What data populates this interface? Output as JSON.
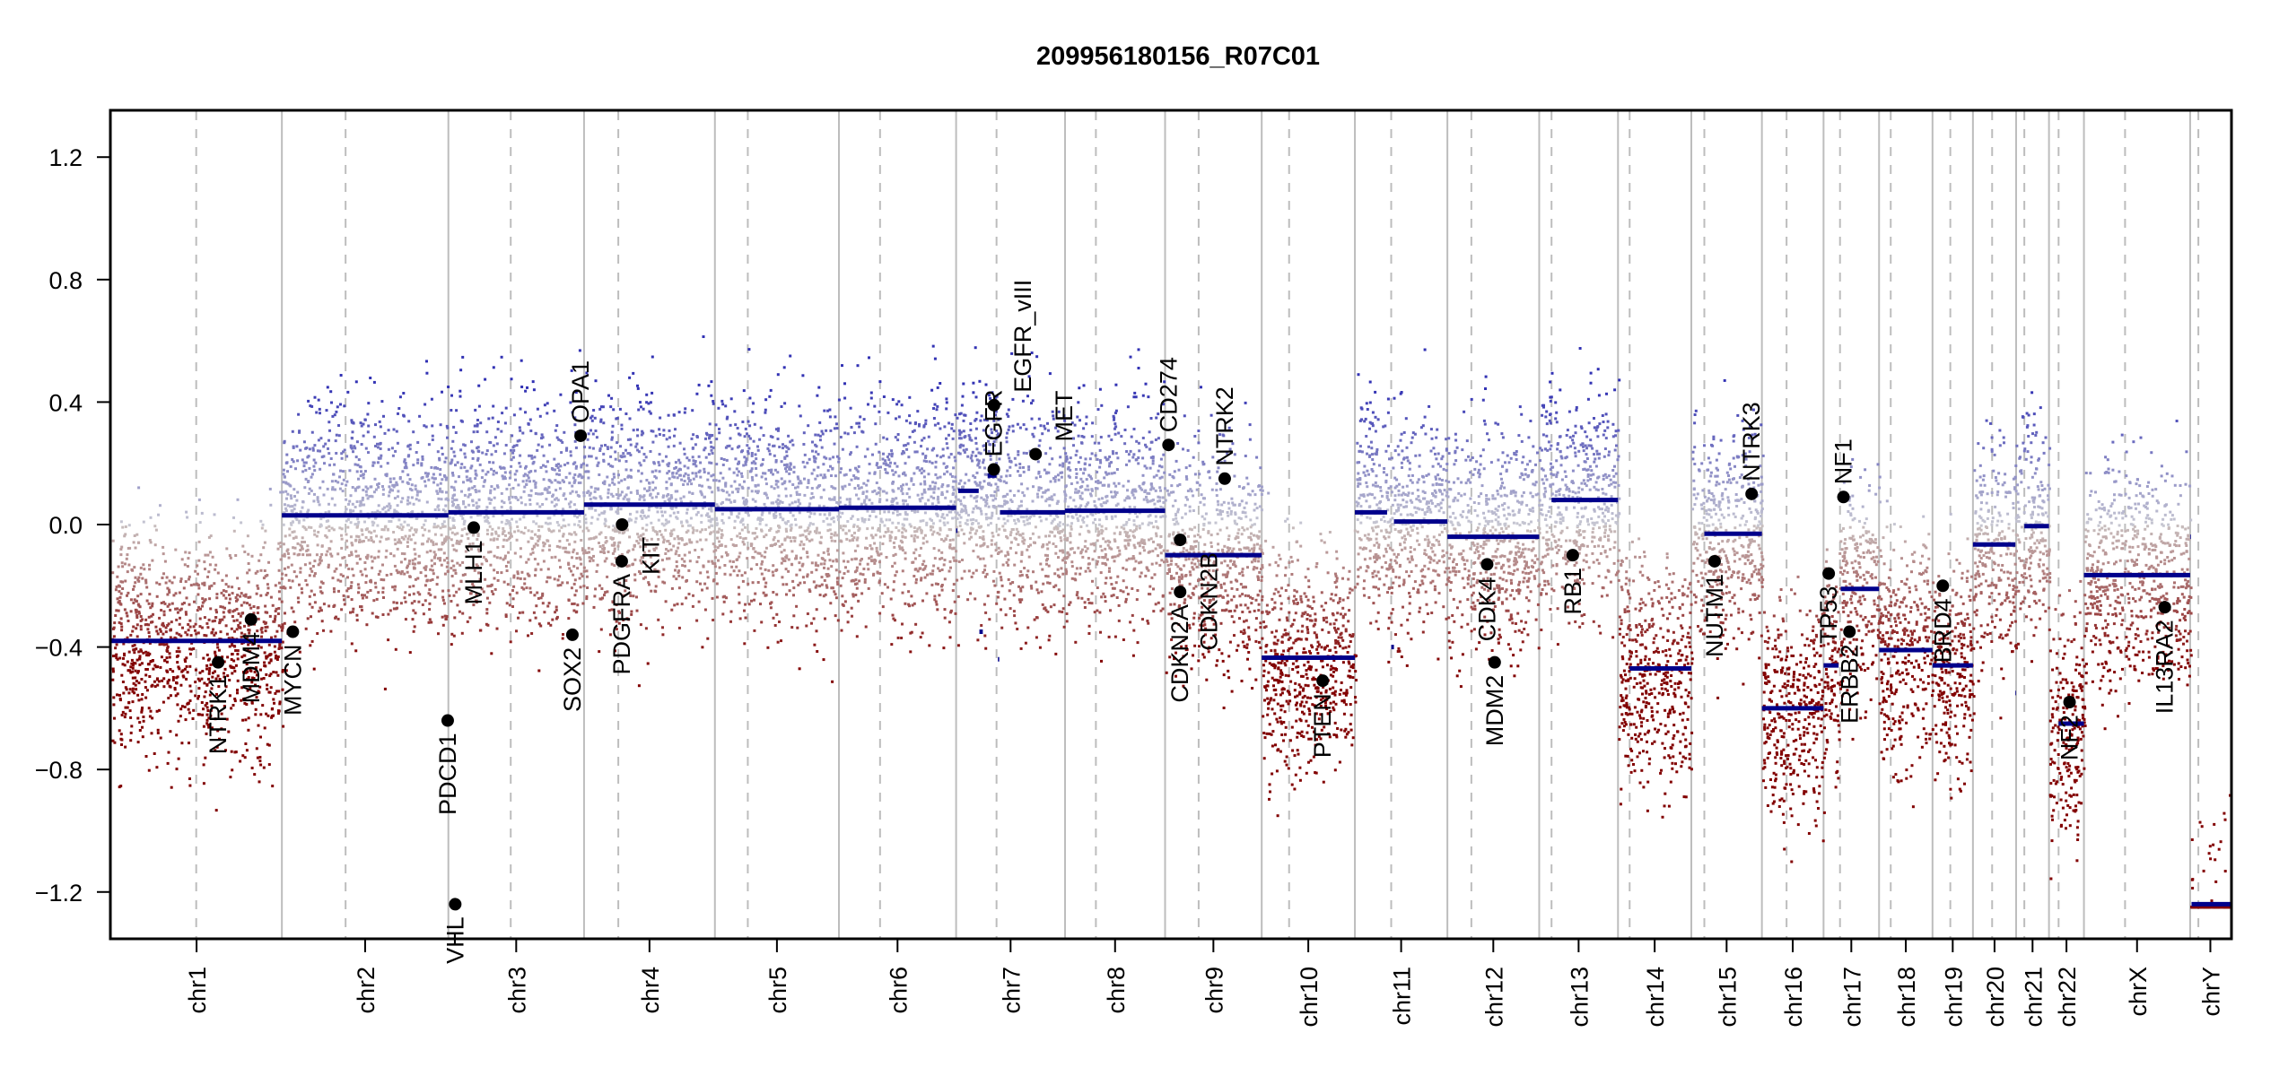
{
  "chart_data": {
    "type": "scatter",
    "title": "209956180156_R07C01",
    "xlabel": "",
    "ylabel": "",
    "ylim": [
      -1.35,
      1.35
    ],
    "yticks": [
      -1.2,
      -0.8,
      -0.4,
      0.0,
      0.4,
      0.8,
      1.2
    ],
    "ytick_labels": [
      "−1.2",
      "−0.8",
      "−0.4",
      "0.0",
      "0.4",
      "0.8",
      "1.2"
    ],
    "grid": false,
    "legend": "none",
    "colors": {
      "gain": "#2b2f9e",
      "loss": "#8b0000",
      "neutral": "#c8c8c8",
      "segment": "#00008b",
      "gene_marker": "#000000",
      "chrom_divider": "#bdbdbd",
      "centromere": "#bdbdbd"
    },
    "chromosomes": [
      {
        "name": "chr1",
        "length_mb": 249,
        "centromere_mb": 124
      },
      {
        "name": "chr2",
        "length_mb": 243,
        "centromere_mb": 93
      },
      {
        "name": "chr3",
        "length_mb": 198,
        "centromere_mb": 91
      },
      {
        "name": "chr4",
        "length_mb": 191,
        "centromere_mb": 50
      },
      {
        "name": "chr5",
        "length_mb": 181,
        "centromere_mb": 48
      },
      {
        "name": "chr6",
        "length_mb": 171,
        "centromere_mb": 60
      },
      {
        "name": "chr7",
        "length_mb": 159,
        "centromere_mb": 59
      },
      {
        "name": "chr8",
        "length_mb": 146,
        "centromere_mb": 45
      },
      {
        "name": "chr9",
        "length_mb": 141,
        "centromere_mb": 49
      },
      {
        "name": "chr10",
        "length_mb": 136,
        "centromere_mb": 40
      },
      {
        "name": "chr11",
        "length_mb": 135,
        "centromere_mb": 53
      },
      {
        "name": "chr12",
        "length_mb": 134,
        "centromere_mb": 35
      },
      {
        "name": "chr13",
        "length_mb": 115,
        "centromere_mb": 18
      },
      {
        "name": "chr14",
        "length_mb": 107,
        "centromere_mb": 17
      },
      {
        "name": "chr15",
        "length_mb": 103,
        "centromere_mb": 19
      },
      {
        "name": "chr16",
        "length_mb": 90,
        "centromere_mb": 36
      },
      {
        "name": "chr17",
        "length_mb": 81,
        "centromere_mb": 24
      },
      {
        "name": "chr18",
        "length_mb": 78,
        "centromere_mb": 17
      },
      {
        "name": "chr19",
        "length_mb": 59,
        "centromere_mb": 26
      },
      {
        "name": "chr20",
        "length_mb": 63,
        "centromere_mb": 28
      },
      {
        "name": "chr21",
        "length_mb": 48,
        "centromere_mb": 12
      },
      {
        "name": "chr22",
        "length_mb": 51,
        "centromere_mb": 14
      },
      {
        "name": "chrX",
        "length_mb": 155,
        "centromere_mb": 60
      },
      {
        "name": "chrY",
        "length_mb": 59,
        "centromere_mb": 12
      }
    ],
    "segments": [
      {
        "chrom": "chr1",
        "start_mb": 0,
        "end_mb": 249,
        "value": -0.38
      },
      {
        "chrom": "chr2",
        "start_mb": 0,
        "end_mb": 243,
        "value": 0.03
      },
      {
        "chrom": "chr3",
        "start_mb": 0,
        "end_mb": 198,
        "value": 0.04
      },
      {
        "chrom": "chr4",
        "start_mb": 0,
        "end_mb": 191,
        "value": 0.065
      },
      {
        "chrom": "chr5",
        "start_mb": 0,
        "end_mb": 181,
        "value": 0.05
      },
      {
        "chrom": "chr6",
        "start_mb": 0,
        "end_mb": 171,
        "value": 0.055
      },
      {
        "chrom": "chr7",
        "start_mb": 0,
        "end_mb": 2,
        "value": -0.02
      },
      {
        "chrom": "chr7",
        "start_mb": 3,
        "end_mb": 33,
        "value": 0.11
      },
      {
        "chrom": "chr7",
        "start_mb": 34,
        "end_mb": 39,
        "value": -0.35
      },
      {
        "chrom": "chr7",
        "start_mb": 46,
        "end_mb": 59,
        "value": 0.16
      },
      {
        "chrom": "chr7",
        "start_mb": 61,
        "end_mb": 63,
        "value": -0.44
      },
      {
        "chrom": "chr7",
        "start_mb": 64,
        "end_mb": 159,
        "value": 0.04
      },
      {
        "chrom": "chr8",
        "start_mb": 0,
        "end_mb": 146,
        "value": 0.045
      },
      {
        "chrom": "chr9",
        "start_mb": 0,
        "end_mb": 141,
        "value": -0.1
      },
      {
        "chrom": "chr10",
        "start_mb": 0,
        "end_mb": 136,
        "value": -0.435
      },
      {
        "chrom": "chr11",
        "start_mb": 0,
        "end_mb": 47,
        "value": 0.04
      },
      {
        "chrom": "chr11",
        "start_mb": 53,
        "end_mb": 57,
        "value": -0.4
      },
      {
        "chrom": "chr11",
        "start_mb": 57,
        "end_mb": 135,
        "value": 0.01
      },
      {
        "chrom": "chr12",
        "start_mb": 0,
        "end_mb": 134,
        "value": -0.04
      },
      {
        "chrom": "chr13",
        "start_mb": 18,
        "end_mb": 115,
        "value": 0.08
      },
      {
        "chrom": "chr14",
        "start_mb": 17,
        "end_mb": 107,
        "value": -0.47
      },
      {
        "chrom": "chr15",
        "start_mb": 19,
        "end_mb": 103,
        "value": -0.03
      },
      {
        "chrom": "chr16",
        "start_mb": 0,
        "end_mb": 90,
        "value": -0.6
      },
      {
        "chrom": "chr17",
        "start_mb": 0,
        "end_mb": 22,
        "value": -0.46
      },
      {
        "chrom": "chr17",
        "start_mb": 25,
        "end_mb": 81,
        "value": -0.21
      },
      {
        "chrom": "chr18",
        "start_mb": 0,
        "end_mb": 78,
        "value": -0.41
      },
      {
        "chrom": "chr19",
        "start_mb": 0,
        "end_mb": 59,
        "value": -0.46
      },
      {
        "chrom": "chr20",
        "start_mb": 0,
        "end_mb": 62,
        "value": -0.065
      },
      {
        "chrom": "chr20",
        "start_mb": 62,
        "end_mb": 63,
        "value": -0.55
      },
      {
        "chrom": "chr21",
        "start_mb": 12,
        "end_mb": 48,
        "value": -0.005
      },
      {
        "chrom": "chr22",
        "start_mb": 14,
        "end_mb": 51,
        "value": -0.65
      },
      {
        "chrom": "chrX",
        "start_mb": 0,
        "end_mb": 155,
        "value": -0.165
      },
      {
        "chrom": "chrY",
        "start_mb": 0,
        "end_mb": 1,
        "value": -0.04
      },
      {
        "chrom": "chrY",
        "start_mb": 2,
        "end_mb": 59,
        "value": -1.24
      }
    ],
    "genes": [
      {
        "name": "NTRK1",
        "chrom": "chr1",
        "pos_mb": 156,
        "value": -0.45
      },
      {
        "name": "MDM4",
        "chrom": "chr1",
        "pos_mb": 204,
        "value": -0.31
      },
      {
        "name": "MYCN",
        "chrom": "chr2",
        "pos_mb": 16,
        "value": -0.35
      },
      {
        "name": "PDCD1",
        "chrom": "chr2",
        "pos_mb": 242,
        "value": -0.64
      },
      {
        "name": "VHL",
        "chrom": "chr3",
        "pos_mb": 10,
        "value": -1.24
      },
      {
        "name": "MLH1",
        "chrom": "chr3",
        "pos_mb": 37,
        "value": -0.01
      },
      {
        "name": "SOX2",
        "chrom": "chr3",
        "pos_mb": 181,
        "value": -0.36
      },
      {
        "name": "OPA1",
        "chrom": "chr3",
        "pos_mb": 193,
        "value": 0.29
      },
      {
        "name": "PDGFRA",
        "chrom": "chr4",
        "pos_mb": 55,
        "value": -0.12
      },
      {
        "name": "KIT",
        "chrom": "chr4",
        "pos_mb": 55.5,
        "value": 0.0
      },
      {
        "name": "EGFR",
        "chrom": "chr7",
        "pos_mb": 55,
        "value": 0.18
      },
      {
        "name": "EGFR_vIII",
        "chrom": "chr7",
        "pos_mb": 55.3,
        "value": 0.39
      },
      {
        "name": "MET",
        "chrom": "chr7",
        "pos_mb": 116,
        "value": 0.23
      },
      {
        "name": "CD274",
        "chrom": "chr9",
        "pos_mb": 5,
        "value": 0.26
      },
      {
        "name": "CDKN2A",
        "chrom": "chr9",
        "pos_mb": 21.9,
        "value": -0.22
      },
      {
        "name": "CDKN2B",
        "chrom": "chr9",
        "pos_mb": 22,
        "value": -0.05
      },
      {
        "name": "NTRK2",
        "chrom": "chr9",
        "pos_mb": 87,
        "value": 0.15
      },
      {
        "name": "PTEN",
        "chrom": "chr10",
        "pos_mb": 89,
        "value": -0.51
      },
      {
        "name": "CDK4",
        "chrom": "chr12",
        "pos_mb": 58,
        "value": -0.13
      },
      {
        "name": "MDM2",
        "chrom": "chr12",
        "pos_mb": 69,
        "value": -0.45
      },
      {
        "name": "RB1",
        "chrom": "chr13",
        "pos_mb": 49,
        "value": -0.1
      },
      {
        "name": "NUTM1",
        "chrom": "chr15",
        "pos_mb": 34,
        "value": -0.12
      },
      {
        "name": "NTRK3",
        "chrom": "chr15",
        "pos_mb": 88,
        "value": 0.1
      },
      {
        "name": "TP53",
        "chrom": "chr17",
        "pos_mb": 7.5,
        "value": -0.16
      },
      {
        "name": "NF1",
        "chrom": "chr17",
        "pos_mb": 29,
        "value": 0.09
      },
      {
        "name": "ERBB2",
        "chrom": "chr17",
        "pos_mb": 37.8,
        "value": -0.35
      },
      {
        "name": "BRD4",
        "chrom": "chr19",
        "pos_mb": 15,
        "value": -0.2
      },
      {
        "name": "NF2",
        "chrom": "chr22",
        "pos_mb": 30,
        "value": -0.58
      },
      {
        "name": "IL13RA2",
        "chrom": "chrX",
        "pos_mb": 118,
        "value": -0.27
      }
    ],
    "probe_profile": [
      {
        "chrom": "chr1",
        "center": -0.38
      },
      {
        "chrom": "chr2",
        "center": 0.03
      },
      {
        "chrom": "chr3",
        "center": 0.04
      },
      {
        "chrom": "chr4",
        "center": 0.065
      },
      {
        "chrom": "chr5",
        "center": 0.05
      },
      {
        "chrom": "chr6",
        "center": 0.055
      },
      {
        "chrom": "chr7",
        "center": 0.05
      },
      {
        "chrom": "chr8",
        "center": 0.045
      },
      {
        "chrom": "chr9",
        "center": -0.1
      },
      {
        "chrom": "chr10",
        "center": -0.435
      },
      {
        "chrom": "chr11",
        "center": 0.02
      },
      {
        "chrom": "chr12",
        "center": -0.04
      },
      {
        "chrom": "chr13",
        "center": 0.08
      },
      {
        "chrom": "chr14",
        "center": -0.47
      },
      {
        "chrom": "chr15",
        "center": -0.03
      },
      {
        "chrom": "chr16",
        "center": -0.6
      },
      {
        "chrom": "chr17",
        "center": -0.25
      },
      {
        "chrom": "chr18",
        "center": -0.41
      },
      {
        "chrom": "chr19",
        "center": -0.46
      },
      {
        "chrom": "chr20",
        "center": -0.065
      },
      {
        "chrom": "chr21",
        "center": -0.005
      },
      {
        "chrom": "chr22",
        "center": -0.65
      },
      {
        "chrom": "chrX",
        "center": -0.165
      },
      {
        "chrom": "chrY",
        "center": -1.24
      }
    ]
  }
}
